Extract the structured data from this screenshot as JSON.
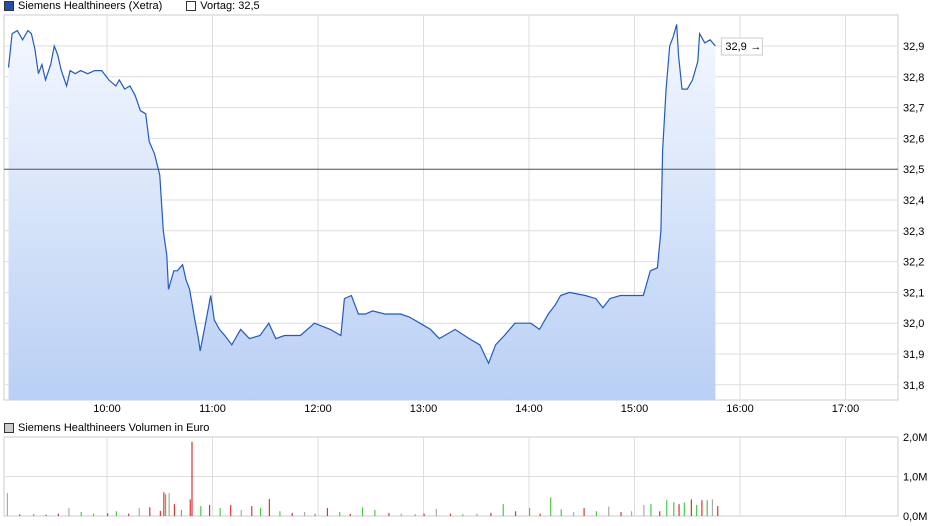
{
  "price_chart": {
    "legend_series": "Siemens Healthineers (Xetra)",
    "legend_prev": "Vortag: 32,5",
    "last_label": "32,9",
    "colors": {
      "line": "#1f5bc6",
      "swatch": "#1f4fa8",
      "fill_top": "#f4f8ff",
      "fill_bottom": "#b9cff4",
      "prev_line": "#555555",
      "grid": "#dcdcdc"
    },
    "chart_data": {
      "type": "area",
      "ylim": [
        31.755,
        33.0
      ],
      "xlim": [
        "09:00",
        "17:30"
      ],
      "grid": true,
      "prev_close": 32.5,
      "y_ticks": [
        "32,9",
        "32,8",
        "32,7",
        "32,6",
        "32,5",
        "32,4",
        "32,3",
        "32,2",
        "32,1",
        "32,0",
        "31,9",
        "31,8"
      ],
      "x_ticks": [
        "10:00",
        "11:00",
        "12:00",
        "13:00",
        "14:00",
        "15:00",
        "16:00",
        "17:00"
      ],
      "points": [
        [
          "09:04",
          32.83
        ],
        [
          "09:06",
          32.94
        ],
        [
          "09:09",
          32.95
        ],
        [
          "09:12",
          32.92
        ],
        [
          "09:15",
          32.95
        ],
        [
          "09:17",
          32.94
        ],
        [
          "09:19",
          32.89
        ],
        [
          "09:21",
          32.81
        ],
        [
          "09:23",
          32.84
        ],
        [
          "09:25",
          32.79
        ],
        [
          "09:28",
          32.84
        ],
        [
          "09:30",
          32.9
        ],
        [
          "09:32",
          32.87
        ],
        [
          "09:34",
          32.82
        ],
        [
          "09:37",
          32.77
        ],
        [
          "09:39",
          32.82
        ],
        [
          "09:42",
          32.81
        ],
        [
          "09:45",
          32.82
        ],
        [
          "09:49",
          32.81
        ],
        [
          "09:53",
          32.82
        ],
        [
          "09:57",
          32.82
        ],
        [
          "10:01",
          32.79
        ],
        [
          "10:05",
          32.77
        ],
        [
          "10:07",
          32.79
        ],
        [
          "10:10",
          32.76
        ],
        [
          "10:13",
          32.77
        ],
        [
          "10:16",
          32.74
        ],
        [
          "10:19",
          32.69
        ],
        [
          "10:22",
          32.68
        ],
        [
          "10:24",
          32.59
        ],
        [
          "10:27",
          32.55
        ],
        [
          "10:30",
          32.48
        ],
        [
          "10:32",
          32.3
        ],
        [
          "10:34",
          32.22
        ],
        [
          "10:35",
          32.11
        ],
        [
          "10:38",
          32.17
        ],
        [
          "10:40",
          32.17
        ],
        [
          "10:43",
          32.19
        ],
        [
          "10:45",
          32.14
        ],
        [
          "10:47",
          32.11
        ],
        [
          "10:50",
          32.01
        ],
        [
          "10:52",
          31.95
        ],
        [
          "10:53",
          31.91
        ],
        [
          "10:56",
          32.0
        ],
        [
          "10:59",
          32.09
        ],
        [
          "11:01",
          32.01
        ],
        [
          "11:04",
          31.98
        ],
        [
          "11:07",
          31.96
        ],
        [
          "11:11",
          31.93
        ],
        [
          "11:16",
          31.98
        ],
        [
          "11:21",
          31.95
        ],
        [
          "11:27",
          31.96
        ],
        [
          "11:32",
          32.0
        ],
        [
          "11:36",
          31.95
        ],
        [
          "11:41",
          31.96
        ],
        [
          "11:50",
          31.96
        ],
        [
          "11:58",
          32.0
        ],
        [
          "12:07",
          31.98
        ],
        [
          "12:13",
          31.96
        ],
        [
          "12:15",
          32.08
        ],
        [
          "12:19",
          32.09
        ],
        [
          "12:23",
          32.03
        ],
        [
          "12:27",
          32.03
        ],
        [
          "12:31",
          32.04
        ],
        [
          "12:38",
          32.03
        ],
        [
          "12:47",
          32.03
        ],
        [
          "12:52",
          32.02
        ],
        [
          "12:58",
          32.0
        ],
        [
          "13:04",
          31.98
        ],
        [
          "13:09",
          31.95
        ],
        [
          "13:18",
          31.98
        ],
        [
          "13:26",
          31.95
        ],
        [
          "13:32",
          31.93
        ],
        [
          "13:37",
          31.87
        ],
        [
          "13:41",
          31.93
        ],
        [
          "13:46",
          31.96
        ],
        [
          "13:52",
          32.0
        ],
        [
          "14:01",
          32.0
        ],
        [
          "14:06",
          31.98
        ],
        [
          "14:11",
          32.03
        ],
        [
          "14:15",
          32.06
        ],
        [
          "14:18",
          32.09
        ],
        [
          "14:23",
          32.1
        ],
        [
          "14:32",
          32.09
        ],
        [
          "14:38",
          32.08
        ],
        [
          "14:42",
          32.05
        ],
        [
          "14:46",
          32.08
        ],
        [
          "14:52",
          32.09
        ],
        [
          "14:57",
          32.09
        ],
        [
          "15:05",
          32.09
        ],
        [
          "15:09",
          32.17
        ],
        [
          "15:13",
          32.18
        ],
        [
          "15:15",
          32.3
        ],
        [
          "15:16",
          32.56
        ],
        [
          "15:18",
          32.76
        ],
        [
          "15:20",
          32.9
        ],
        [
          "15:22",
          32.93
        ],
        [
          "15:24",
          32.97
        ],
        [
          "15:25",
          32.87
        ],
        [
          "15:27",
          32.76
        ],
        [
          "15:30",
          32.76
        ],
        [
          "15:33",
          32.79
        ],
        [
          "15:36",
          32.85
        ],
        [
          "15:37",
          32.94
        ],
        [
          "15:40",
          32.91
        ],
        [
          "15:43",
          32.92
        ],
        [
          "15:46",
          32.9
        ]
      ]
    }
  },
  "volume_chart": {
    "legend": "Siemens Healthineers Volumen in Euro",
    "colors": {
      "up": "#44cc44",
      "down": "#dd3333",
      "neutral": "#aaaaaa",
      "swatch": "#cccccc"
    },
    "chart_data": {
      "type": "bar",
      "unit": "K EUR",
      "ylim": [
        0,
        2000
      ],
      "y_ticks": [
        "2,0M",
        "1,0M",
        "0,0M"
      ],
      "bars": [
        [
          "09:03",
          580,
          "n"
        ],
        [
          "09:10",
          40,
          "d"
        ],
        [
          "09:18",
          50,
          "u"
        ],
        [
          "09:25",
          30,
          "d"
        ],
        [
          "09:32",
          60,
          "d"
        ],
        [
          "09:38",
          200,
          "n"
        ],
        [
          "09:45",
          100,
          "u"
        ],
        [
          "09:52",
          60,
          "u"
        ],
        [
          "10:00",
          70,
          "d"
        ],
        [
          "10:05",
          120,
          "u"
        ],
        [
          "10:12",
          60,
          "d"
        ],
        [
          "10:18",
          200,
          "n"
        ],
        [
          "10:24",
          220,
          "d"
        ],
        [
          "10:30",
          130,
          "d"
        ],
        [
          "10:32",
          600,
          "d"
        ],
        [
          "10:33",
          550,
          "u"
        ],
        [
          "10:35",
          580,
          "n"
        ],
        [
          "10:38",
          300,
          "d"
        ],
        [
          "10:42",
          150,
          "u"
        ],
        [
          "10:47",
          420,
          "d"
        ],
        [
          "10:48",
          1880,
          "d"
        ],
        [
          "10:53",
          250,
          "u"
        ],
        [
          "10:58",
          280,
          "d"
        ],
        [
          "11:04",
          200,
          "u"
        ],
        [
          "11:10",
          280,
          "d"
        ],
        [
          "11:16",
          150,
          "n"
        ],
        [
          "11:22",
          250,
          "d"
        ],
        [
          "11:27",
          200,
          "u"
        ],
        [
          "11:32",
          430,
          "d"
        ],
        [
          "11:38",
          120,
          "u"
        ],
        [
          "11:45",
          80,
          "d"
        ],
        [
          "11:52",
          100,
          "n"
        ],
        [
          "11:58",
          60,
          "u"
        ],
        [
          "12:05",
          200,
          "d"
        ],
        [
          "12:12",
          100,
          "u"
        ],
        [
          "12:18",
          50,
          "d"
        ],
        [
          "12:25",
          220,
          "u"
        ],
        [
          "12:32",
          150,
          "u"
        ],
        [
          "12:40",
          80,
          "d"
        ],
        [
          "12:47",
          60,
          "n"
        ],
        [
          "12:55",
          40,
          "u"
        ],
        [
          "13:00",
          60,
          "d"
        ],
        [
          "13:07",
          180,
          "n"
        ],
        [
          "13:15",
          60,
          "d"
        ],
        [
          "13:22",
          40,
          "u"
        ],
        [
          "13:30",
          60,
          "n"
        ],
        [
          "13:38",
          80,
          "d"
        ],
        [
          "13:45",
          300,
          "u"
        ],
        [
          "13:52",
          120,
          "d"
        ],
        [
          "14:00",
          200,
          "u"
        ],
        [
          "14:06",
          60,
          "d"
        ],
        [
          "14:12",
          470,
          "u"
        ],
        [
          "14:18",
          170,
          "u"
        ],
        [
          "14:25",
          100,
          "n"
        ],
        [
          "14:31",
          200,
          "d"
        ],
        [
          "14:38",
          120,
          "u"
        ],
        [
          "14:45",
          240,
          "n"
        ],
        [
          "14:52",
          100,
          "d"
        ],
        [
          "14:58",
          120,
          "n"
        ],
        [
          "15:05",
          280,
          "n"
        ],
        [
          "15:09",
          300,
          "u"
        ],
        [
          "15:14",
          120,
          "d"
        ],
        [
          "15:18",
          400,
          "u"
        ],
        [
          "15:22",
          350,
          "u"
        ],
        [
          "15:25",
          300,
          "d"
        ],
        [
          "15:28",
          340,
          "u"
        ],
        [
          "15:32",
          420,
          "d"
        ],
        [
          "15:35",
          280,
          "u"
        ],
        [
          "15:38",
          400,
          "d"
        ],
        [
          "15:41",
          400,
          "u"
        ],
        [
          "15:44",
          420,
          "n"
        ],
        [
          "15:47",
          250,
          "d"
        ]
      ]
    }
  }
}
